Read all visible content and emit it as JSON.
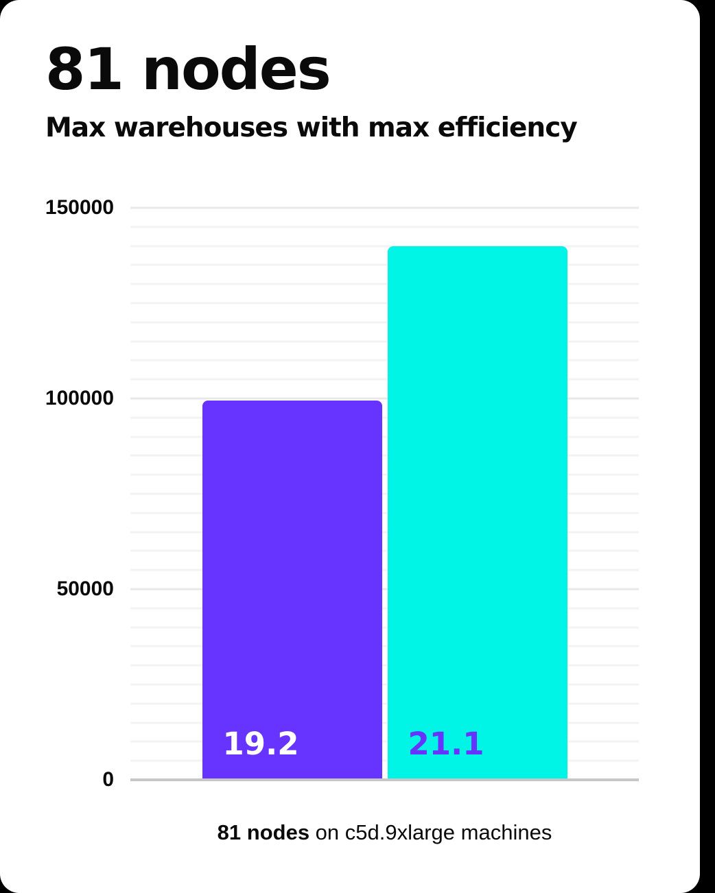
{
  "header": {
    "title": "81 nodes",
    "subtitle": "Max warehouses with max efficiency"
  },
  "caption": {
    "bold": "81 nodes",
    "rest": " on c5d.9xlarge machines"
  },
  "colors": {
    "background": "#000000",
    "card": "#ffffff",
    "text": "#0a0a0a",
    "purple": "#6633ff",
    "cyan": "#00f5e6",
    "minor_grid": "#f3f3f3",
    "major_grid": "#e8e8e8",
    "axis_line": "#c7c7c7"
  },
  "chart_data": {
    "type": "bar",
    "title": "81 nodes",
    "subtitle": "Max warehouses with max efficiency",
    "caption": "81 nodes on c5d.9xlarge machines",
    "xlabel": "",
    "ylabel": "",
    "ylim": [
      0,
      150000
    ],
    "yticks": [
      0,
      50000,
      100000,
      150000
    ],
    "minor_grid_step": 5000,
    "grid": true,
    "legend": false,
    "bars": [
      {
        "value": 99500,
        "data_label": "19.2",
        "color": "#6633ff",
        "label_color": "#ffffff"
      },
      {
        "value": 140000,
        "data_label": "21.1",
        "color": "#00f5e6",
        "label_color": "#6633ff"
      }
    ]
  }
}
